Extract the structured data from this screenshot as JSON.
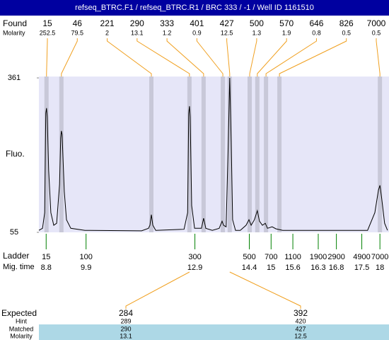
{
  "chart_data": {
    "type": "line",
    "title": "refseq_BTRC.F1 / refseq_BTRC.R1 / BRC 333 / -1 / Well ID 1161510",
    "ylabel": "Fluo.",
    "ylim": [
      55,
      361
    ],
    "yticks": [
      55,
      361
    ],
    "xlim": [
      8.6,
      18.25
    ],
    "x": [
      8.6,
      8.7,
      8.76,
      8.79,
      8.81,
      8.83,
      8.87,
      8.93,
      9.01,
      9.09,
      9.17,
      9.2,
      9.22,
      9.24,
      9.3,
      9.36,
      9.48,
      9.87,
      11.43,
      11.62,
      11.66,
      11.7,
      11.74,
      11.82,
      12.6,
      12.7,
      12.73,
      12.75,
      12.77,
      12.81,
      12.89,
      13.08,
      13.14,
      13.2,
      13.38,
      13.57,
      13.65,
      13.69,
      13.76,
      13.82,
      13.86,
      13.9,
      13.94,
      14.02,
      14.15,
      14.31,
      14.39,
      14.45,
      14.54,
      14.62,
      14.68,
      14.76,
      14.84,
      14.9,
      15.03,
      15.13,
      15.32,
      17.66,
      17.86,
      17.96,
      18.0,
      18.05,
      18.13,
      18.21
    ],
    "values": [
      59,
      63,
      94,
      291,
      301,
      284,
      178,
      94,
      69,
      73,
      150,
      242,
      256,
      249,
      136,
      80,
      63,
      59,
      58,
      63,
      69,
      90,
      69,
      59,
      61,
      94,
      291,
      305,
      284,
      108,
      63,
      63,
      83,
      63,
      59,
      63,
      77,
      69,
      66,
      235,
      361,
      235,
      80,
      59,
      59,
      69,
      80,
      69,
      80,
      98,
      77,
      69,
      73,
      63,
      66,
      62,
      59,
      59,
      94,
      139,
      148,
      122,
      73,
      59
    ],
    "color": "#000000",
    "found": {
      "label": "Found",
      "molarity_label": "Molarity",
      "sizes": [
        15,
        46,
        221,
        290,
        333,
        401,
        427,
        500,
        570,
        646,
        826,
        7000
      ],
      "molarity": [
        252.5,
        79.5,
        2,
        13.1,
        1.2,
        0.9,
        12.5,
        1.3,
        1.9,
        0.8,
        0.5,
        0.5
      ],
      "times": [
        8.81,
        9.22,
        11.7,
        12.75,
        13.14,
        13.67,
        13.86,
        14.41,
        14.62,
        14.86,
        15.23,
        18.0
      ]
    },
    "ladder": {
      "label": "Ladder",
      "time_label": "Mig. time",
      "sizes": [
        15,
        100,
        300,
        500,
        700,
        1100,
        1900,
        2900,
        4900,
        7000
      ],
      "times": [
        8.8,
        9.9,
        12.9,
        14.4,
        15,
        15.6,
        16.3,
        16.8,
        17.5,
        18
      ]
    },
    "expected": {
      "labels": [
        "Expected",
        "Hint",
        "Matched",
        "Molarity"
      ],
      "expected": [
        284,
        392
      ],
      "hint": [
        289,
        420
      ],
      "matched": [
        290,
        427
      ],
      "molarity": [
        13.1,
        12.5
      ]
    }
  }
}
